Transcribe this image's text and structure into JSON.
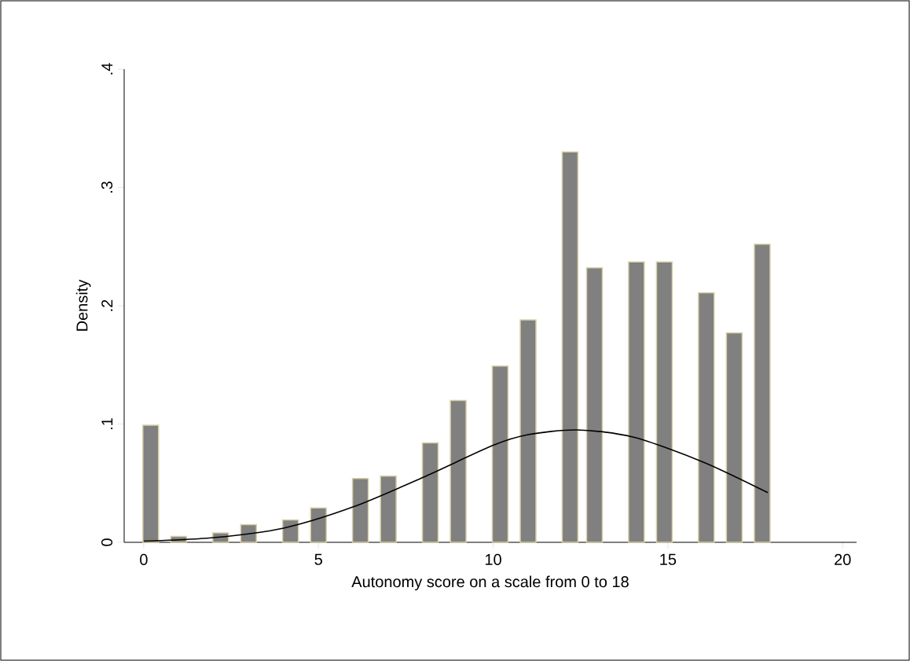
{
  "chart_data": {
    "type": "bar",
    "xlabel": "Autonomy score on a scale from 0 to 18",
    "ylabel": "Density",
    "xlim": [
      -0.56,
      20.4
    ],
    "ylim": [
      0,
      0.4
    ],
    "xticks": [
      0,
      5,
      10,
      15,
      20
    ],
    "yticks": [
      0,
      {
        "value": 0.1,
        "label": ".1"
      },
      {
        "value": 0.2,
        "label": ".2"
      },
      {
        "value": 0.3,
        "label": ".3"
      },
      {
        "value": 0.4,
        "label": ".4"
      }
    ],
    "series": [
      {
        "type": "bar",
        "color": "#808080",
        "x": [
          0.2,
          1.0,
          2.2,
          3.0,
          4.2,
          5.0,
          6.2,
          7.0,
          8.2,
          9.0,
          10.2,
          11.0,
          12.2,
          12.9,
          14.1,
          14.9,
          16.1,
          16.9,
          17.7
        ],
        "values": [
          0.099,
          0.005,
          0.008,
          0.015,
          0.019,
          0.029,
          0.054,
          0.056,
          0.084,
          0.12,
          0.149,
          0.188,
          0.33,
          0.232,
          0.237,
          0.237,
          0.211,
          0.177,
          0.252
        ]
      },
      {
        "type": "line",
        "color": "#000000",
        "x": [
          0,
          2,
          4,
          6,
          8,
          10,
          11,
          12.4,
          14,
          16,
          17.86
        ],
        "values": [
          0.001,
          0.004,
          0.012,
          0.03,
          0.055,
          0.082,
          0.091,
          0.095,
          0.089,
          0.068,
          0.042
        ]
      }
    ]
  }
}
